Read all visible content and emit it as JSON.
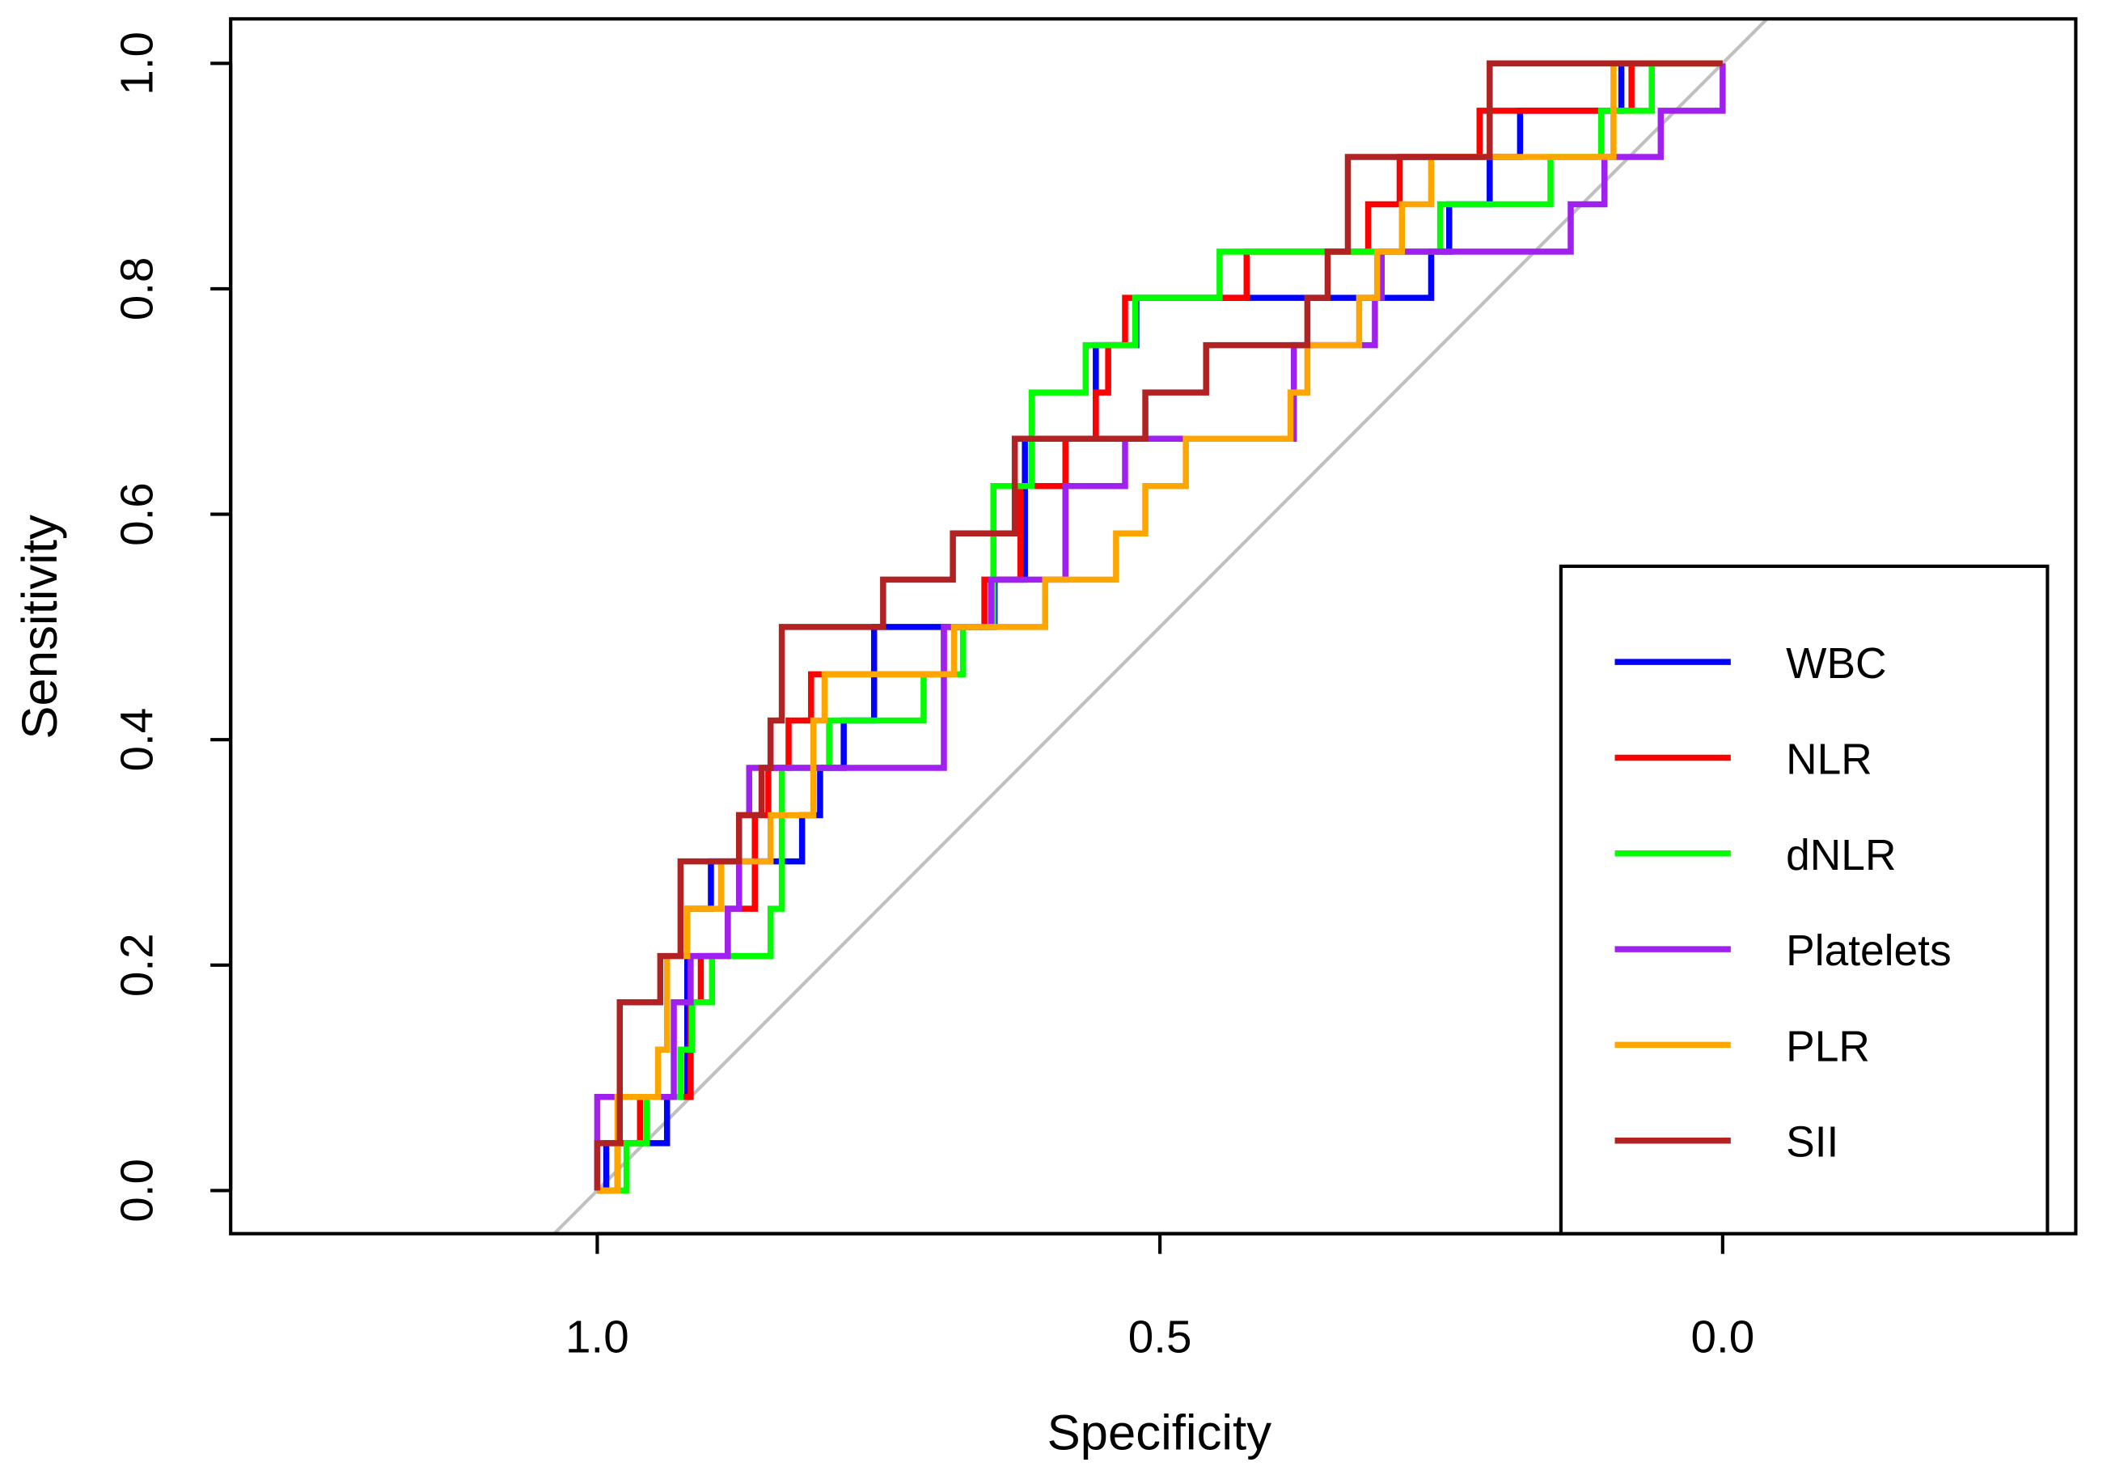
{
  "chart_data": {
    "type": "line",
    "title": "",
    "xlabel": "Specificity",
    "ylabel": "Sensitivity",
    "xlim": [
      1.0,
      0.0
    ],
    "ylim": [
      0.0,
      1.0
    ],
    "x_ticks": [
      "1.0",
      "0.5",
      "0.0"
    ],
    "x_tick_values": [
      1.0,
      0.5,
      0.0
    ],
    "y_ticks": [
      "0.0",
      "0.2",
      "0.4",
      "0.6",
      "0.8",
      "1.0"
    ],
    "y_tick_values": [
      0.0,
      0.2,
      0.4,
      0.6,
      0.8,
      1.0
    ],
    "grid": false,
    "legend_position": "bottom-right",
    "reference_line": {
      "color": "#c0c0c0"
    },
    "series": [
      {
        "name": "WBC",
        "color": "#0000ff",
        "steps": [
          [
            0.992,
            0.042
          ],
          [
            0.938,
            0.083
          ],
          [
            0.92,
            0.25
          ],
          [
            0.899,
            0.292
          ],
          [
            0.818,
            0.333
          ],
          [
            0.802,
            0.375
          ],
          [
            0.781,
            0.417
          ],
          [
            0.754,
            0.5
          ],
          [
            0.647,
            0.542
          ],
          [
            0.62,
            0.667
          ],
          [
            0.557,
            0.75
          ],
          [
            0.521,
            0.792
          ],
          [
            0.259,
            0.833
          ],
          [
            0.243,
            0.875
          ],
          [
            0.207,
            0.917
          ],
          [
            0.18,
            0.958
          ],
          [
            0.09,
            1.0
          ],
          [
            0.0,
            1.0
          ]
        ]
      },
      {
        "name": "NLR",
        "color": "#ff0000",
        "steps": [
          [
            0.982,
            0.042
          ],
          [
            0.962,
            0.083
          ],
          [
            0.917,
            0.167
          ],
          [
            0.908,
            0.208
          ],
          [
            0.884,
            0.25
          ],
          [
            0.86,
            0.333
          ],
          [
            0.848,
            0.375
          ],
          [
            0.83,
            0.417
          ],
          [
            0.81,
            0.458
          ],
          [
            0.692,
            0.5
          ],
          [
            0.656,
            0.542
          ],
          [
            0.624,
            0.625
          ],
          [
            0.584,
            0.667
          ],
          [
            0.557,
            0.708
          ],
          [
            0.546,
            0.75
          ],
          [
            0.531,
            0.792
          ],
          [
            0.423,
            0.833
          ],
          [
            0.315,
            0.875
          ],
          [
            0.287,
            0.917
          ],
          [
            0.216,
            0.958
          ],
          [
            0.081,
            1.0
          ],
          [
            0.0,
            1.0
          ]
        ]
      },
      {
        "name": "dNLR",
        "color": "#00ff00",
        "steps": [
          [
            0.992,
            0.0
          ],
          [
            0.974,
            0.042
          ],
          [
            0.956,
            0.083
          ],
          [
            0.926,
            0.125
          ],
          [
            0.916,
            0.167
          ],
          [
            0.898,
            0.208
          ],
          [
            0.846,
            0.25
          ],
          [
            0.836,
            0.375
          ],
          [
            0.794,
            0.417
          ],
          [
            0.71,
            0.458
          ],
          [
            0.675,
            0.5
          ],
          [
            0.648,
            0.625
          ],
          [
            0.614,
            0.708
          ],
          [
            0.566,
            0.75
          ],
          [
            0.522,
            0.792
          ],
          [
            0.447,
            0.833
          ],
          [
            0.251,
            0.875
          ],
          [
            0.153,
            0.917
          ],
          [
            0.108,
            0.958
          ],
          [
            0.063,
            1.0
          ],
          [
            0.0,
            1.0
          ]
        ]
      },
      {
        "name": "Platelets",
        "color": "#a020f0",
        "steps": [
          [
            1.0,
            0.083
          ],
          [
            0.932,
            0.167
          ],
          [
            0.917,
            0.208
          ],
          [
            0.884,
            0.25
          ],
          [
            0.874,
            0.333
          ],
          [
            0.865,
            0.375
          ],
          [
            0.692,
            0.5
          ],
          [
            0.65,
            0.542
          ],
          [
            0.602,
            0.542
          ],
          [
            0.584,
            0.625
          ],
          [
            0.531,
            0.667
          ],
          [
            0.381,
            0.75
          ],
          [
            0.309,
            0.792
          ],
          [
            0.303,
            0.833
          ],
          [
            0.135,
            0.875
          ],
          [
            0.105,
            0.917
          ],
          [
            0.055,
            0.958
          ],
          [
            0.0,
            1.0
          ]
        ]
      },
      {
        "name": "PLR",
        "color": "#ffa500",
        "steps": [
          [
            0.982,
            0.083
          ],
          [
            0.946,
            0.125
          ],
          [
            0.938,
            0.208
          ],
          [
            0.92,
            0.25
          ],
          [
            0.89,
            0.292
          ],
          [
            0.846,
            0.333
          ],
          [
            0.808,
            0.417
          ],
          [
            0.798,
            0.458
          ],
          [
            0.683,
            0.5
          ],
          [
            0.602,
            0.542
          ],
          [
            0.539,
            0.583
          ],
          [
            0.513,
            0.625
          ],
          [
            0.477,
            0.667
          ],
          [
            0.384,
            0.708
          ],
          [
            0.369,
            0.75
          ],
          [
            0.323,
            0.792
          ],
          [
            0.307,
            0.833
          ],
          [
            0.285,
            0.875
          ],
          [
            0.259,
            0.917
          ],
          [
            0.097,
            1.0
          ],
          [
            0.0,
            1.0
          ]
        ]
      },
      {
        "name": "SII",
        "color": "#b22222",
        "steps": [
          [
            1.0,
            0.042
          ],
          [
            0.98,
            0.167
          ],
          [
            0.944,
            0.208
          ],
          [
            0.926,
            0.292
          ],
          [
            0.874,
            0.333
          ],
          [
            0.854,
            0.375
          ],
          [
            0.846,
            0.417
          ],
          [
            0.836,
            0.5
          ],
          [
            0.746,
            0.542
          ],
          [
            0.684,
            0.583
          ],
          [
            0.629,
            0.667
          ],
          [
            0.513,
            0.708
          ],
          [
            0.459,
            0.75
          ],
          [
            0.369,
            0.792
          ],
          [
            0.351,
            0.833
          ],
          [
            0.333,
            0.917
          ],
          [
            0.207,
            1.0
          ],
          [
            0.0,
            1.0
          ]
        ]
      }
    ]
  }
}
